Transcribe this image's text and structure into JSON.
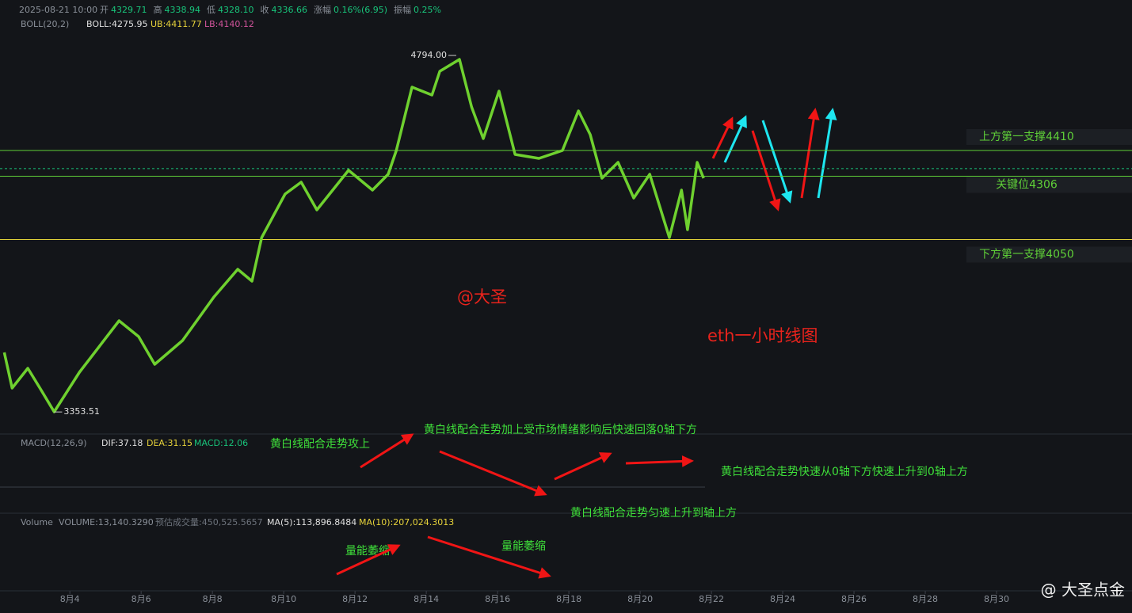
{
  "header": {
    "datetime": "2025-08-21 10:00",
    "items": [
      {
        "label": "开",
        "value": "4329.71"
      },
      {
        "label": "高",
        "value": "4338.94"
      },
      {
        "label": "低",
        "value": "4328.10"
      },
      {
        "label": "收",
        "value": "4336.66"
      },
      {
        "label": "涨幅",
        "value": "0.16%(6.95)"
      },
      {
        "label": "振幅",
        "value": "0.25%"
      }
    ],
    "boll": {
      "name": "BOLL(20,2)",
      "mid": "BOLL:4275.95",
      "ub": "UB:4411.77",
      "lb": "LB:4140.12"
    }
  },
  "chart_data": {
    "type": "line",
    "color": "#6fd12f",
    "x": [
      2.16,
      2.38,
      2.82,
      3.16,
      3.56,
      4.27,
      5.38,
      5.93,
      6.38,
      7.16,
      8.04,
      8.71,
      9.11,
      9.38,
      10.04,
      10.49,
      10.93,
      11.82,
      12.49,
      12.93,
      13.16,
      13.6,
      14.16,
      14.38,
      14.93,
      15.27,
      15.6,
      16.04,
      16.49,
      17.16,
      17.82,
      18.27,
      18.6,
      18.93,
      19.38,
      19.82,
      20.27,
      20.82,
      21.16,
      21.33,
      21.6,
      21.78
    ],
    "values": [
      3594,
      3450,
      3530,
      3450,
      3354,
      3514,
      3722,
      3658,
      3546,
      3642,
      3818,
      3930,
      3882,
      4058,
      4234,
      4282,
      4170,
      4330,
      4250,
      4314,
      4410,
      4666,
      4634,
      4730,
      4778,
      4586,
      4458,
      4650,
      4394,
      4378,
      4410,
      4570,
      4474,
      4298,
      4362,
      4218,
      4314,
      4058,
      4250,
      4090,
      4362,
      4298
    ],
    "xlim": [
      2.04,
      33.8
    ],
    "ylim": [
      3274,
      5018
    ],
    "xticks": [
      {
        "value": 4,
        "label": "8月4"
      },
      {
        "value": 6,
        "label": "8月6"
      },
      {
        "value": 8,
        "label": "8月8"
      },
      {
        "value": 10,
        "label": "8月10"
      },
      {
        "value": 12,
        "label": "8月12"
      },
      {
        "value": 14,
        "label": "8月14"
      },
      {
        "value": 16,
        "label": "8月16"
      },
      {
        "value": 18,
        "label": "8月18"
      },
      {
        "value": 20,
        "label": "8月20"
      },
      {
        "value": 22,
        "label": "8月22"
      },
      {
        "value": 24,
        "label": "8月24"
      },
      {
        "value": 26,
        "label": "8月26"
      },
      {
        "value": 28,
        "label": "8月28"
      },
      {
        "value": 30,
        "label": "8月30"
      }
    ],
    "levels": [
      {
        "value": 4410,
        "label": "上方第一支撑4410",
        "color": "#5fd038"
      },
      {
        "value": 4306,
        "label": "关键位4306",
        "color": "#5fd038"
      },
      {
        "value": 4050,
        "label": "下方第一支撑4050",
        "color": "#e3d33a"
      }
    ],
    "last_price": 4336.66,
    "extremes": [
      {
        "x": 14.93,
        "value": 4794,
        "label": "4794.00"
      },
      {
        "x": 3.56,
        "value": 3353.51,
        "label": "3353.51"
      }
    ],
    "annotations": [
      "@大圣",
      "eth一小时线图"
    ]
  },
  "macd_panel": {
    "name": "MACD(12,26,9)",
    "dif": "DIF:37.18",
    "dea": "DEA:31.15",
    "macd": "MACD:12.06",
    "notes": [
      "黄白线配合走势攻上",
      "黄白线配合走势加上受市场情绪影响后快速回落0轴下方",
      "黄白线配合走势快速从0轴下方快速上升到0轴上方",
      "黄白线配合走势匀速上升到轴上方"
    ]
  },
  "volume_panel": {
    "name": "Volume",
    "volume": "VOLUME:13,140.3290",
    "estimate": "预估成交量:450,525.5657",
    "ma5": "MA(5):113,896.8484",
    "ma10": "MA(10):207,024.3013",
    "notes": [
      "量能萎缩",
      "量能萎缩"
    ]
  },
  "watermark": "@ 大圣点金"
}
